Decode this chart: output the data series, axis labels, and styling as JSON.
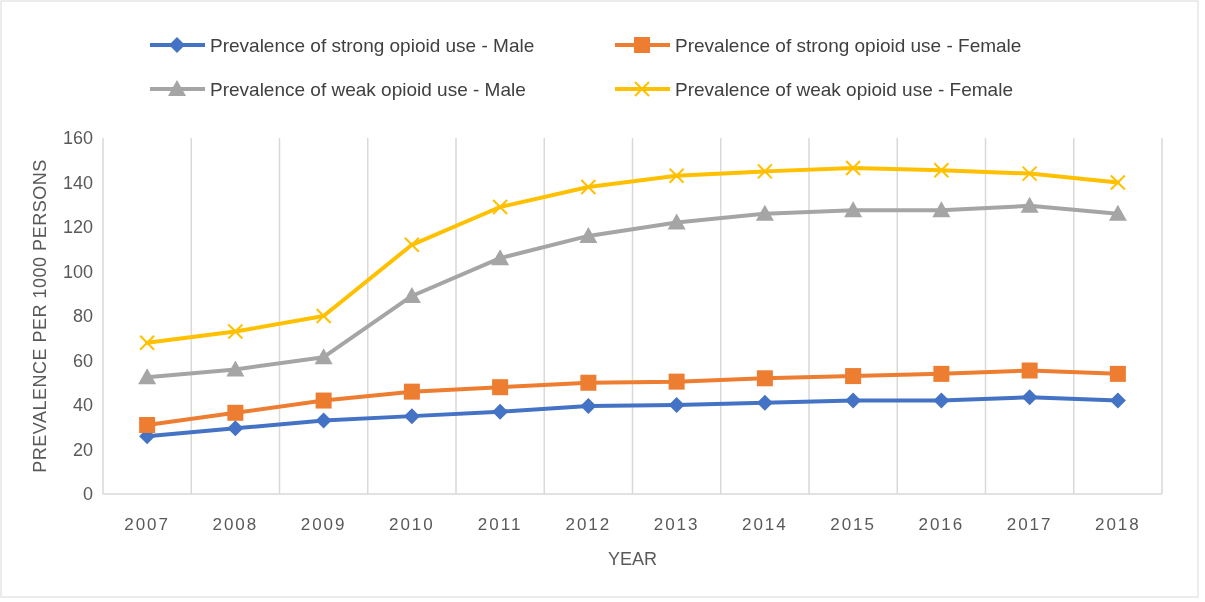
{
  "chart_data": {
    "type": "line",
    "xlabel": "YEAR",
    "ylabel": "PREVALENCE PER 1000 PERSONS",
    "categories": [
      "2007",
      "2008",
      "2009",
      "2010",
      "2011",
      "2012",
      "2013",
      "2014",
      "2015",
      "2016",
      "2017",
      "2018"
    ],
    "series": [
      {
        "name": "Prevalence of strong opioid use - Male",
        "color": "#4472c4",
        "marker": "diamond",
        "values": [
          26,
          29.5,
          33,
          35,
          37,
          39.5,
          40,
          41,
          42,
          42,
          43.5,
          42
        ]
      },
      {
        "name": "Prevalence of strong opioid use - Female",
        "color": "#ed7d31",
        "marker": "square",
        "values": [
          31,
          36.5,
          42,
          46,
          48,
          50,
          50.5,
          52,
          53,
          54,
          55.5,
          54
        ]
      },
      {
        "name": "Prevalence of weak opioid use - Male",
        "color": "#a5a5a5",
        "marker": "triangle",
        "values": [
          52.5,
          56,
          61.5,
          89,
          106,
          116,
          122,
          126,
          127.5,
          127.5,
          129.5,
          126
        ]
      },
      {
        "name": "Prevalence of weak opioid use - Female",
        "color": "#ffc000",
        "marker": "cross",
        "values": [
          68,
          73,
          80,
          112,
          129,
          138,
          143,
          145,
          146.5,
          145.5,
          144,
          140
        ]
      }
    ],
    "ylim": [
      0,
      160
    ],
    "yticks": [
      0,
      20,
      40,
      60,
      80,
      100,
      120,
      140,
      160
    ],
    "grid": "x",
    "legend": "top"
  }
}
